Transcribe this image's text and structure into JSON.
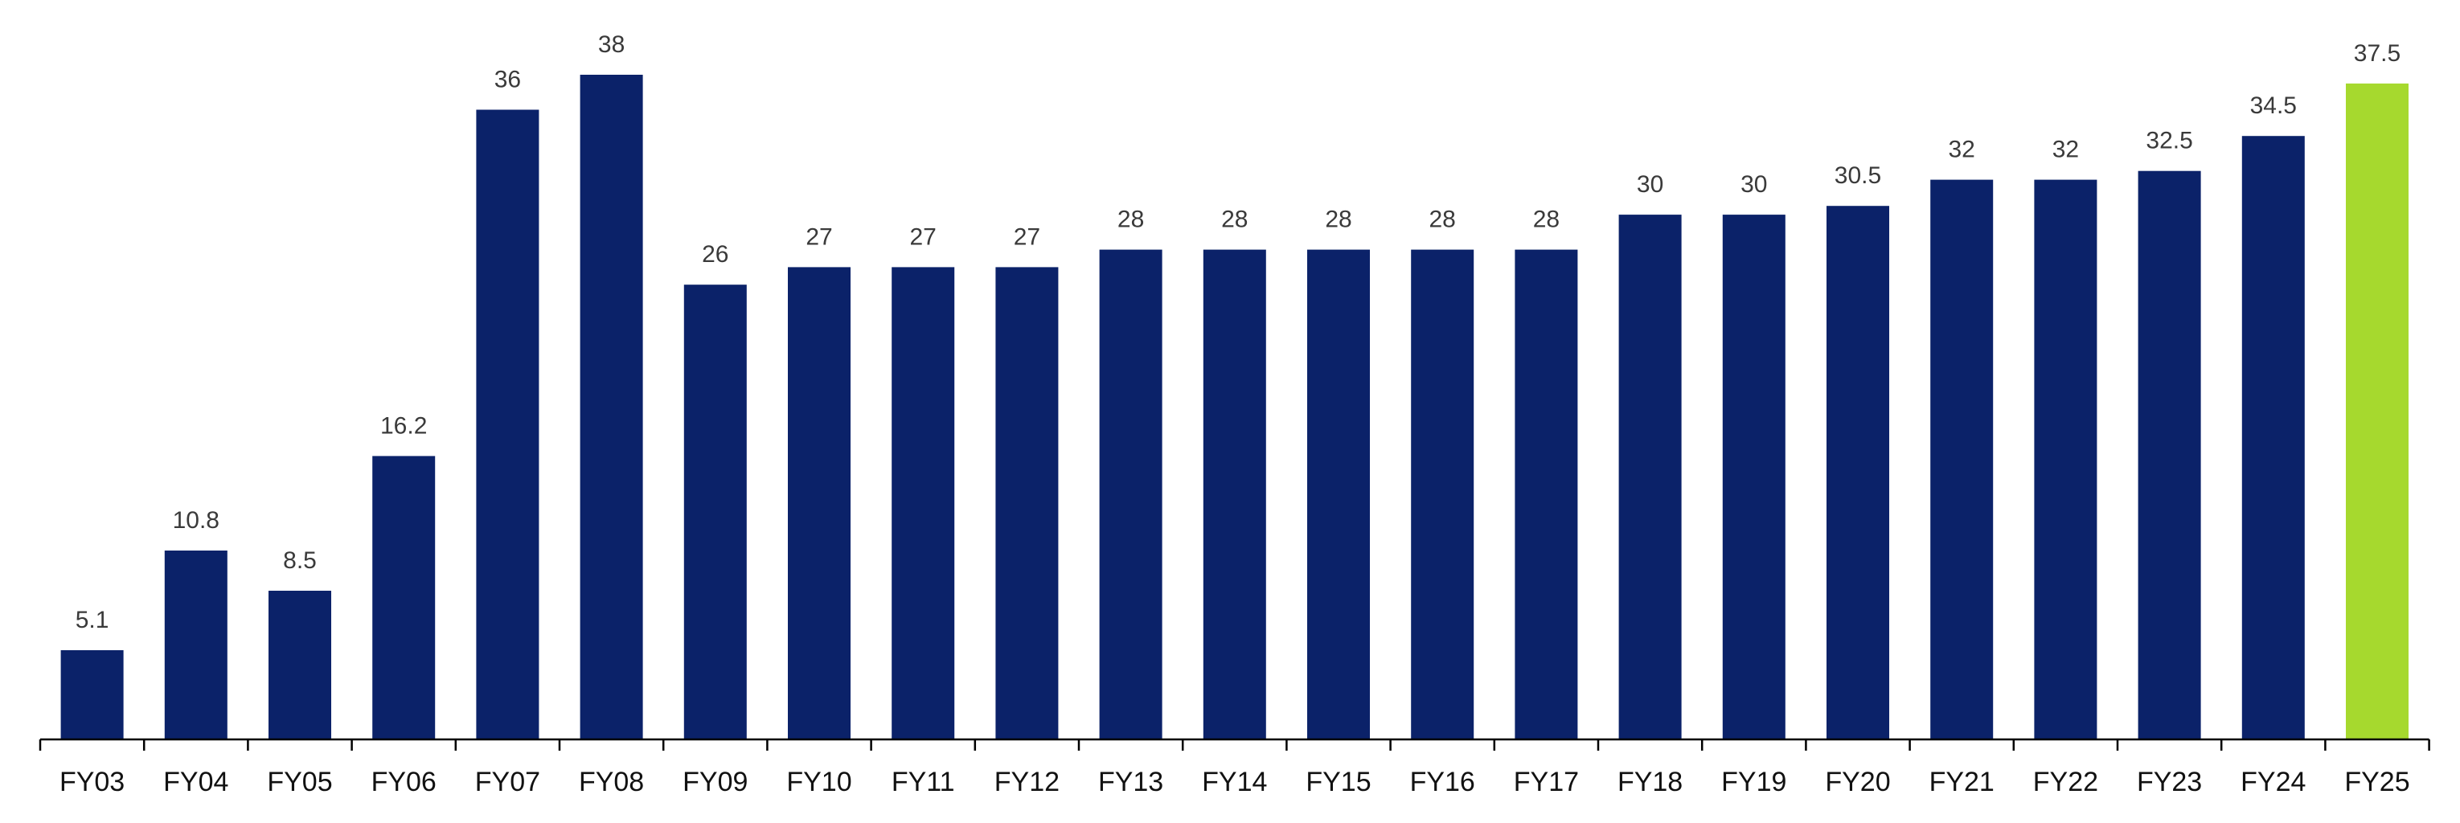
{
  "chart_data": {
    "type": "bar",
    "title": "",
    "xlabel": "",
    "ylabel": "",
    "ylim": [
      0,
      40
    ],
    "grid": false,
    "legend": "none",
    "categories": [
      "FY03",
      "FY04",
      "FY05",
      "FY06",
      "FY07",
      "FY08",
      "FY09",
      "FY10",
      "FY11",
      "FY12",
      "FY13",
      "FY14",
      "FY15",
      "FY16",
      "FY17",
      "FY18",
      "FY19",
      "FY20",
      "FY21",
      "FY22",
      "FY23",
      "FY24",
      "FY25"
    ],
    "values": [
      5.1,
      10.8,
      8.5,
      16.2,
      36,
      38,
      26,
      27,
      27,
      27,
      28,
      28,
      28,
      28,
      28,
      30,
      30,
      30.5,
      32,
      32,
      32.5,
      34.5,
      37.5
    ],
    "value_labels": [
      "5.1",
      "10.8",
      "8.5",
      "16.2",
      "36",
      "38",
      "26",
      "27",
      "27",
      "27",
      "28",
      "28",
      "28",
      "28",
      "28",
      "30",
      "30",
      "30.5",
      "32",
      "32",
      "32.5",
      "34.5",
      "37.5"
    ],
    "colors": {
      "default_bar": "#0b2269",
      "highlight_bar": "#a6d92e",
      "axis": "#000000",
      "label": "#3a3a3a"
    },
    "highlight_categories": [
      "FY25"
    ]
  }
}
